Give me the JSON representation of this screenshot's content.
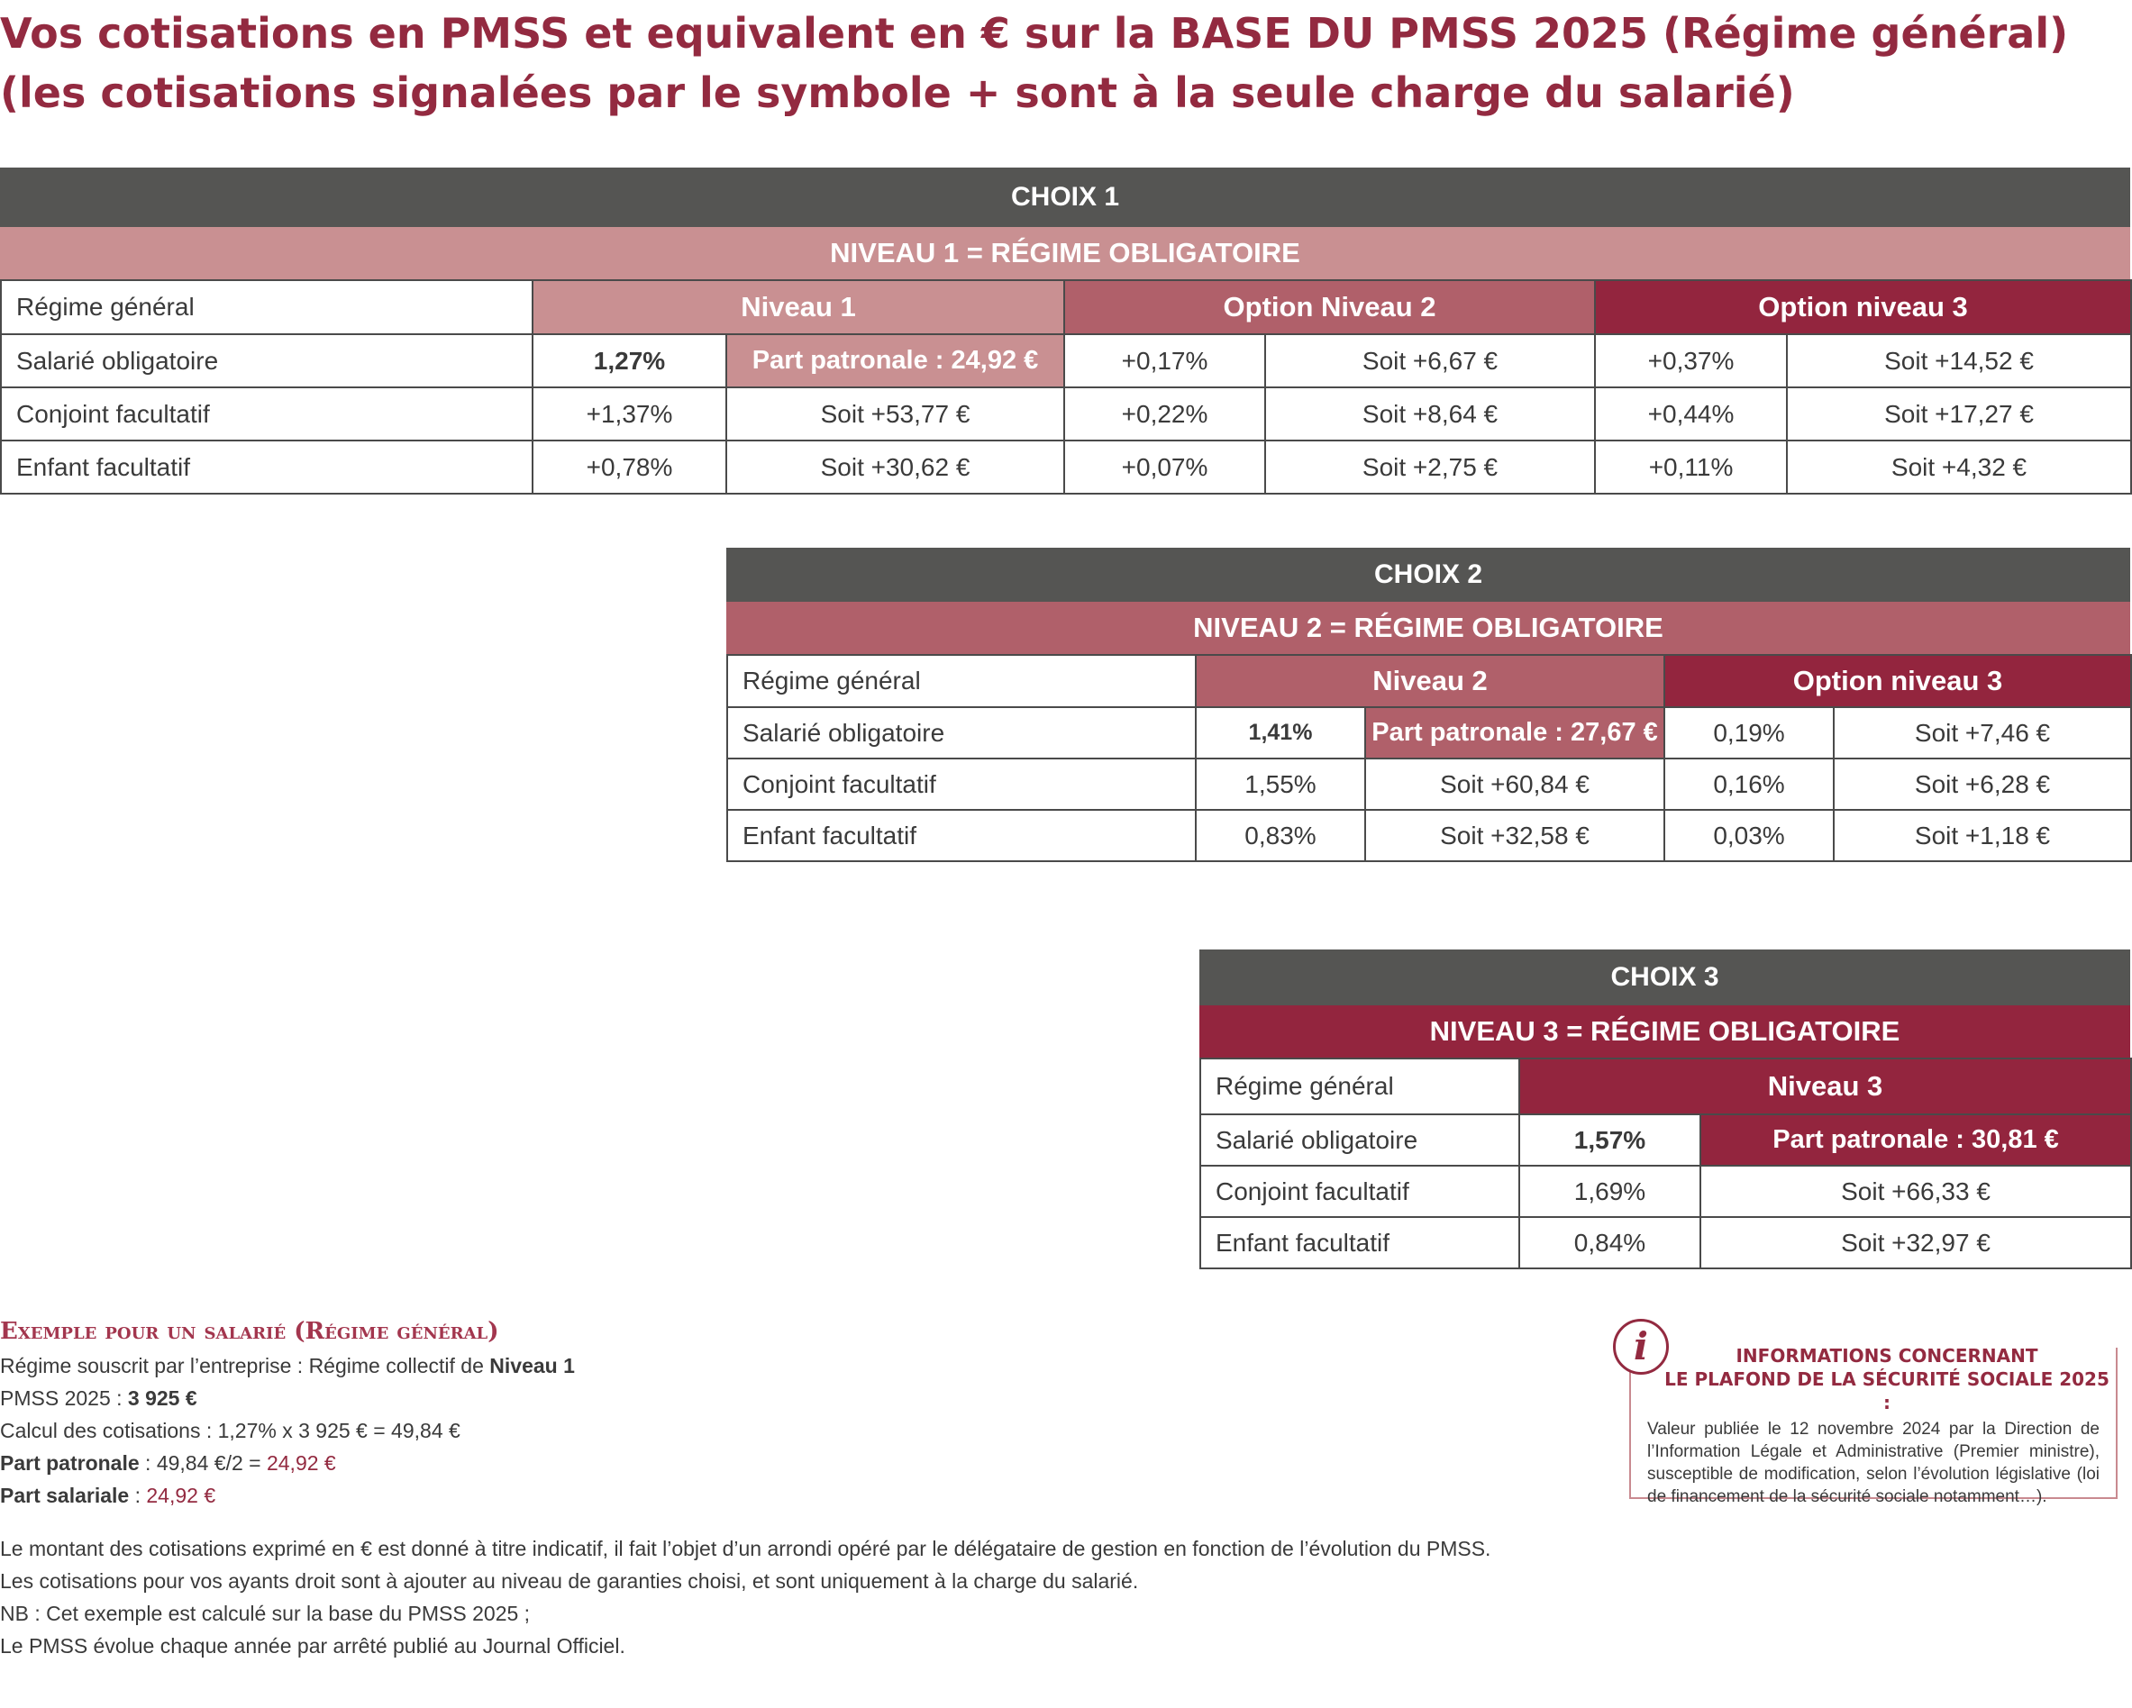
{
  "title": {
    "line1": "Vos cotisations en PMSS et equivalent en € sur la BASE DU PMSS 2025 (Régime général)",
    "line2": "(les cotisations signalées par le symbole + sont à la seule charge du salarié)"
  },
  "colors": {
    "level1": "#c99092",
    "level2": "#b0606a",
    "level3": "#93253e",
    "header_grey": "#555553"
  },
  "choix1": {
    "header": "CHOIX 1",
    "band": "NIVEAU 1 = RÉGIME OBLIGATOIRE",
    "col_regime": "Régime général",
    "col_n1": "Niveau 1",
    "col_n2": "Option Niveau 2",
    "col_n3": "Option niveau 3",
    "rows": [
      {
        "label": "Salarié obligatoire",
        "n1_pct": "1,27%",
        "n1_eur": "Part patronale : 24,92 €",
        "n2_pct": "+0,17%",
        "n2_eur": "Soit +6,67 €",
        "n3_pct": "+0,37%",
        "n3_eur": "Soit +14,52 €"
      },
      {
        "label": "Conjoint facultatif",
        "n1_pct": "+1,37%",
        "n1_eur": "Soit +53,77 €",
        "n2_pct": "+0,22%",
        "n2_eur": "Soit +8,64 €",
        "n3_pct": "+0,44%",
        "n3_eur": "Soit +17,27 €"
      },
      {
        "label": "Enfant facultatif",
        "n1_pct": "+0,78%",
        "n1_eur": "Soit +30,62 €",
        "n2_pct": "+0,07%",
        "n2_eur": "Soit +2,75 €",
        "n3_pct": "+0,11%",
        "n3_eur": "Soit +4,32 €"
      }
    ]
  },
  "choix2": {
    "header": "CHOIX 2",
    "band": "NIVEAU 2 = RÉGIME OBLIGATOIRE",
    "col_regime": "Régime général",
    "col_n2": "Niveau 2",
    "col_n3": "Option niveau 3",
    "rows": [
      {
        "label": "Salarié obligatoire",
        "n2_pct": "1,41%",
        "n2_eur": "Part patronale : 27,67 €",
        "n3_pct": "0,19%",
        "n3_eur": "Soit +7,46 €"
      },
      {
        "label": "Conjoint facultatif",
        "n2_pct": "1,55%",
        "n2_eur": "Soit +60,84 €",
        "n3_pct": "0,16%",
        "n3_eur": "Soit +6,28 €"
      },
      {
        "label": "Enfant facultatif",
        "n2_pct": "0,83%",
        "n2_eur": "Soit +32,58 €",
        "n3_pct": "0,03%",
        "n3_eur": "Soit +1,18 €"
      }
    ]
  },
  "choix3": {
    "header": "CHOIX 3",
    "band": "NIVEAU 3 = RÉGIME OBLIGATOIRE",
    "col_regime": "Régime général",
    "col_n3": "Niveau 3",
    "rows": [
      {
        "label": "Salarié obligatoire",
        "n3_pct": "1,57%",
        "n3_eur": "Part patronale : 30,81 €"
      },
      {
        "label": "Conjoint facultatif",
        "n3_pct": "1,69%",
        "n3_eur": "Soit +66,33 €"
      },
      {
        "label": "Enfant facultatif",
        "n3_pct": "0,84%",
        "n3_eur": "Soit +32,97 €"
      }
    ]
  },
  "example": {
    "title": "Exemple pour un salarié (Régime général)",
    "line1_prefix": "Régime souscrit par l’entreprise : Régime collectif de ",
    "line1_bold": "Niveau 1",
    "line2_prefix": "PMSS 2025 : ",
    "line2_bold": "3 925 €",
    "line3": "Calcul des cotisations : 1,27% x 3 925 € = 49,84 €",
    "line4_bold": "Part patronale",
    "line4_mid": " : 49,84 €/2 = ",
    "line4_accent": "24,92 €",
    "line5_bold": "Part salariale",
    "line5_mid": " : ",
    "line5_accent": "24,92 €"
  },
  "notes": [
    "Le montant des cotisations exprimé en € est donné à titre indicatif, il fait l’objet d’un arrondi opéré par le délégataire de gestion en fonction de l’évolution du PMSS.",
    "Les cotisations pour vos ayants droit sont à ajouter au niveau de garanties choisi, et sont uniquement à la charge du salarié.",
    "NB : Cet exemple est calculé sur la base du PMSS 2025 ;",
    "Le PMSS évolue chaque année par arrêté publié au Journal Officiel."
  ],
  "info": {
    "icon": "i",
    "title_line1": "INFORMATIONS CONCERNANT",
    "title_line2": "LE PLAFOND DE LA SÉCURITÉ SOCIALE 2025 :",
    "text": "Valeur publiée le 12 novembre 2024 par la Direction de l’Information Légale et Administrative (Premier ministre), susceptible de modification, selon l’évolution législative (loi de financement de la sécurité sociale notamment…)."
  }
}
